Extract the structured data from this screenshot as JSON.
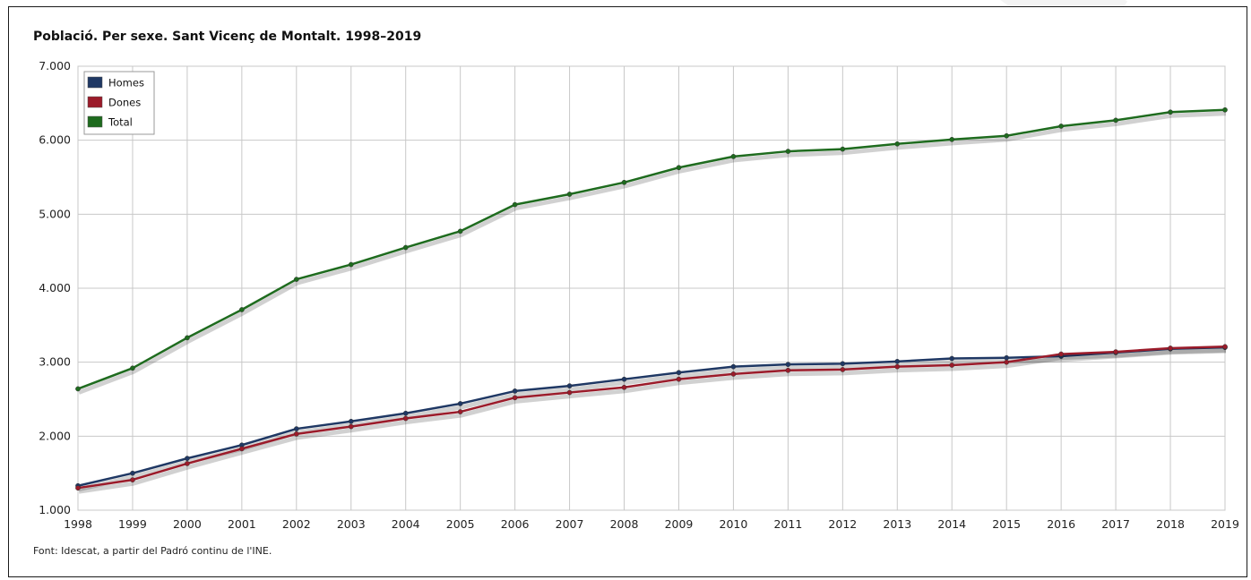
{
  "chart_data": {
    "type": "line",
    "title": "Població. Per sexe. Sant Vicenç de Montalt. 1998–2019",
    "source": "Font: Idescat, a partir del Padró continu de l'INE.",
    "x": [
      1998,
      1999,
      2000,
      2001,
      2002,
      2003,
      2004,
      2005,
      2006,
      2007,
      2008,
      2009,
      2010,
      2011,
      2012,
      2013,
      2014,
      2015,
      2016,
      2017,
      2018,
      2019
    ],
    "x_tick_labels": [
      "1998",
      "1999",
      "2000",
      "2001",
      "2002",
      "2003",
      "2004",
      "2005",
      "2006",
      "2007",
      "2008",
      "2009",
      "2010",
      "2011",
      "2012",
      "2013",
      "2014",
      "2015",
      "2016",
      "2017",
      "2018",
      "2019"
    ],
    "ylim": [
      1000,
      7000
    ],
    "y_ticks": [
      1000,
      2000,
      3000,
      4000,
      5000,
      6000,
      7000
    ],
    "y_tick_labels": [
      "1.000",
      "2.000",
      "3.000",
      "4.000",
      "5.000",
      "6.000",
      "7.000"
    ],
    "grid": true,
    "legend_position": "top-left",
    "series": [
      {
        "name": "Homes",
        "color": "#1f3864",
        "values": [
          1330,
          1500,
          1700,
          1880,
          2100,
          2200,
          2310,
          2440,
          2610,
          2680,
          2770,
          2860,
          2940,
          2970,
          2980,
          3010,
          3050,
          3060,
          3080,
          3130,
          3180,
          3200
        ]
      },
      {
        "name": "Dones",
        "color": "#9b1b2a",
        "values": [
          1300,
          1410,
          1630,
          1830,
          2030,
          2130,
          2240,
          2330,
          2520,
          2590,
          2660,
          2770,
          2840,
          2890,
          2900,
          2940,
          2960,
          3000,
          3110,
          3140,
          3190,
          3210
        ]
      },
      {
        "name": "Total",
        "color": "#1e6b1e",
        "values": [
          2640,
          2920,
          3330,
          3710,
          4120,
          4320,
          4550,
          4770,
          5130,
          5270,
          5430,
          5630,
          5780,
          5850,
          5880,
          5950,
          6010,
          6060,
          6190,
          6270,
          6380,
          6410
        ]
      }
    ]
  }
}
